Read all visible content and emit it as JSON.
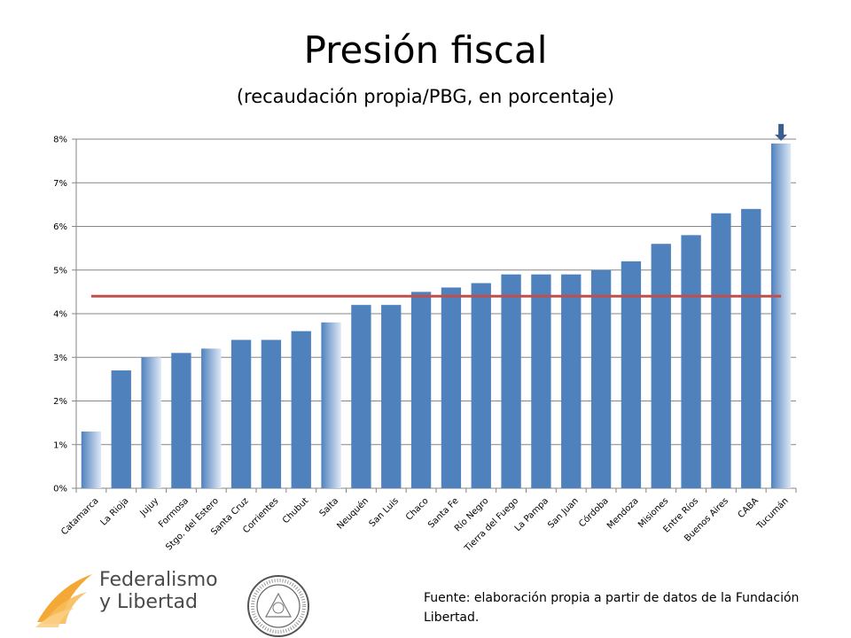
{
  "header": {
    "title": "Presión fiscal",
    "subtitle": "(recaudación propia/PBG, en porcentaje)"
  },
  "footer": {
    "logo_line1": "Federalismo",
    "logo_line2": "y Libertad",
    "source": "Fuente: elaboración propia a partir de datos de la Fundación Libertad.",
    "seal_text": "UNIVERSIDAD DE INVESTIGACIÓN CIENTÍFICA"
  },
  "chart_data": {
    "type": "bar",
    "title": "Presión fiscal",
    "subtitle": "(recaudación propia/PBG, en porcentaje)",
    "categories": [
      "Catamarca",
      "La Rioja",
      "Jujuy",
      "Formosa",
      "Stgo. del Estero",
      "Santa Cruz",
      "Corrientes",
      "Chubut",
      "Salta",
      "Neuquén",
      "San Luis",
      "Chaco",
      "Santa Fe",
      "Río Negro",
      "Tierra del Fuego",
      "La Pampa",
      "San Juan",
      "Córdoba",
      "Mendoza",
      "Misiones",
      "Entre Ríos",
      "Buenos Aires",
      "CABA",
      "Tucumán"
    ],
    "values": [
      1.3,
      2.7,
      3.0,
      3.1,
      3.2,
      3.4,
      3.4,
      3.6,
      3.8,
      4.2,
      4.2,
      4.5,
      4.6,
      4.7,
      4.9,
      4.9,
      4.9,
      5.0,
      5.2,
      5.6,
      5.8,
      6.3,
      6.4,
      7.9
    ],
    "highlighted": [
      "Catamarca",
      "Jujuy",
      "Stgo. del Estero",
      "Salta",
      "Tucumán"
    ],
    "average_line": 4.4,
    "arrow_marker": "Tucumán",
    "yticks": [
      "0%",
      "1%",
      "2%",
      "3%",
      "4%",
      "5%",
      "6%",
      "7%",
      "8%"
    ],
    "ylim": [
      0,
      8
    ],
    "xlabel": "",
    "ylabel": "",
    "grid": true,
    "colors": {
      "bar": "#4f81bd",
      "highlight_from": "#4f81bd",
      "highlight_to": "#dfe8f6",
      "average_line": "#c0504d",
      "arrow": "#3a5f8f",
      "grid": "#868686",
      "logo_orange": "#f3a42c"
    }
  }
}
